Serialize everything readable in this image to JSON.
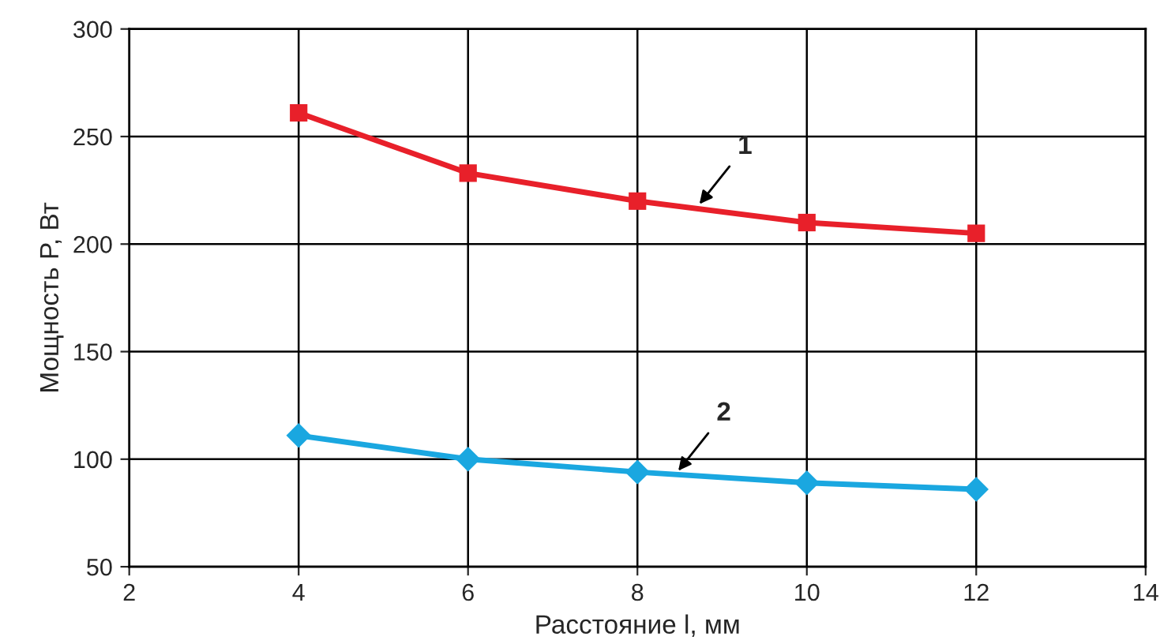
{
  "chart_data": {
    "type": "line",
    "xlabel": "Расстояние l, мм",
    "ylabel": "Мощность P, Вт",
    "x": [
      4,
      6,
      8,
      10,
      12
    ],
    "series": [
      {
        "color": "#e8202a",
        "values": [
          261,
          233,
          220,
          210,
          205
        ],
        "marker": "square"
      },
      {
        "color": "#1aa7e0",
        "values": [
          111,
          100,
          94,
          89,
          86
        ],
        "marker": "diamond"
      }
    ],
    "xlim": [
      2,
      14
    ],
    "xticks": [
      2,
      4,
      6,
      8,
      10,
      12,
      14
    ],
    "ylim": [
      50,
      300
    ],
    "yticks": [
      50,
      100,
      150,
      200,
      250,
      300
    ],
    "grid": true,
    "line_style": "solid",
    "annotations": [
      {
        "text": "1",
        "x": 8.7,
        "y": 217
      },
      {
        "text": "2",
        "x": 8.45,
        "y": 93
      }
    ]
  }
}
